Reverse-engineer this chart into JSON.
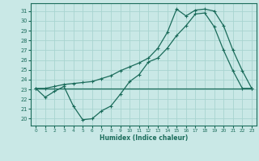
{
  "xlabel": "Humidex (Indice chaleur)",
  "x_ticks": [
    0,
    1,
    2,
    3,
    4,
    5,
    6,
    7,
    8,
    9,
    10,
    11,
    12,
    13,
    14,
    15,
    16,
    17,
    18,
    19,
    20,
    21,
    22,
    23
  ],
  "y_ticks": [
    20,
    21,
    22,
    23,
    24,
    25,
    26,
    27,
    28,
    29,
    30,
    31
  ],
  "ylim": [
    19.3,
    31.8
  ],
  "xlim": [
    -0.5,
    23.5
  ],
  "bg_color": "#c9e8e6",
  "grid_color": "#a8d4d0",
  "line_color": "#1a6b5a",
  "line1_x": [
    0,
    1,
    2,
    3,
    4,
    5,
    6,
    7,
    8,
    9,
    10,
    11,
    12,
    13,
    14,
    15,
    16,
    17,
    18,
    19,
    20,
    21,
    22,
    23
  ],
  "line1_y": [
    23.1,
    23.1,
    23.1,
    23.1,
    23.1,
    23.1,
    23.1,
    23.1,
    23.1,
    23.1,
    23.1,
    23.1,
    23.1,
    23.1,
    23.1,
    23.1,
    23.1,
    23.1,
    23.1,
    23.1,
    23.1,
    23.1,
    23.1,
    23.1
  ],
  "line2_x": [
    0,
    1,
    2,
    3,
    4,
    5,
    6,
    7,
    8,
    9,
    10,
    11,
    12,
    13,
    14,
    15,
    16,
    17,
    18,
    19,
    20,
    21,
    22,
    23
  ],
  "line2_y": [
    23.1,
    22.2,
    22.8,
    23.3,
    21.3,
    19.9,
    20.0,
    20.8,
    21.3,
    22.5,
    23.8,
    24.5,
    25.8,
    26.2,
    27.2,
    28.5,
    29.5,
    30.7,
    30.8,
    29.4,
    27.0,
    24.9,
    23.1,
    23.1
  ],
  "line3_x": [
    0,
    1,
    2,
    3,
    4,
    5,
    6,
    7,
    8,
    9,
    10,
    11,
    12,
    13,
    14,
    15,
    16,
    17,
    18,
    19,
    20,
    21,
    22,
    23
  ],
  "line3_y": [
    23.1,
    23.1,
    23.3,
    23.5,
    23.6,
    23.7,
    23.8,
    24.1,
    24.4,
    24.9,
    25.3,
    25.7,
    26.2,
    27.2,
    28.8,
    31.2,
    30.5,
    31.1,
    31.2,
    31.0,
    29.5,
    27.0,
    24.9,
    23.1
  ]
}
